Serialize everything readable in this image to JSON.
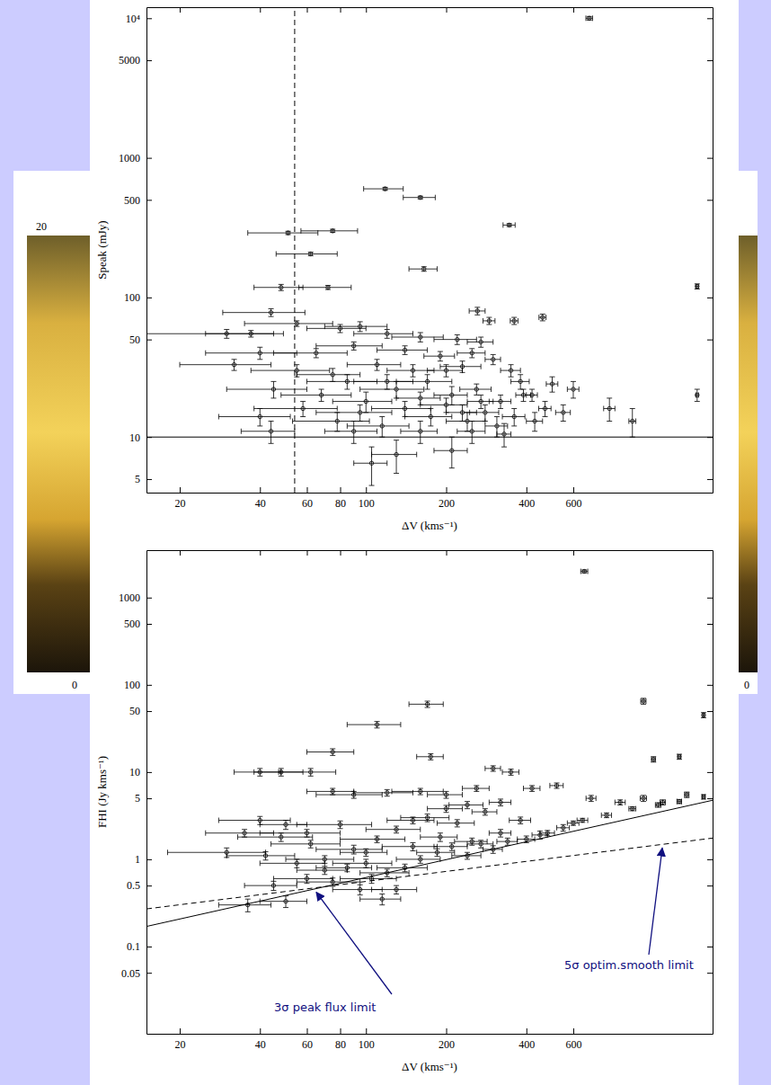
{
  "slide": {
    "background_labels": [
      "20",
      "0",
      "0"
    ]
  },
  "chart_data": [
    {
      "type": "scatter",
      "log": true,
      "marker": "circle",
      "color": "#000000",
      "x_label": "ΔV (kms⁻¹)",
      "y_label": "Speak (mJy)",
      "xlim": [
        15,
        2000
      ],
      "xticks": [
        20,
        40,
        60,
        80,
        100,
        200,
        400,
        600
      ],
      "ylim": [
        4,
        12000
      ],
      "yticks": [
        5,
        10,
        50,
        100,
        500,
        1000,
        5000,
        {
          "value": 10000,
          "label": "10⁴"
        }
      ],
      "hline": {
        "value": 10,
        "line_style": "solid"
      },
      "vline": {
        "value": 54,
        "line_style": "dashed"
      },
      "x": [
        689,
        118,
        160,
        51,
        75,
        62,
        345,
        165,
        48,
        72,
        1750,
        44,
        262,
        290,
        360,
        460,
        55,
        37,
        30,
        80,
        95,
        120,
        160,
        220,
        270,
        40,
        65,
        90,
        140,
        190,
        250,
        300,
        32,
        55,
        75,
        110,
        150,
        230,
        350,
        500,
        420,
        600,
        820,
        1000,
        1750,
        45,
        68,
        85,
        100,
        130,
        170,
        210,
        260,
        320,
        380,
        470,
        40,
        58,
        78,
        95,
        115,
        140,
        175,
        200,
        240,
        280,
        310,
        360,
        430,
        550,
        130,
        105,
        210,
        44,
        90,
        160,
        250,
        330,
        200,
        120,
        230,
        160,
        270,
        390
      ],
      "values": [
        10000,
        600,
        520,
        290,
        300,
        205,
        330,
        160,
        118,
        118,
        120,
        78,
        80,
        68,
        68,
        72,
        65,
        55,
        55,
        60,
        62,
        55,
        52,
        50,
        48,
        40,
        40,
        45,
        42,
        38,
        40,
        36,
        33,
        30,
        28,
        33,
        30,
        32,
        30,
        24,
        20,
        22,
        16,
        13,
        20,
        22,
        20,
        25,
        18,
        22,
        25,
        20,
        22,
        18,
        25,
        16,
        14,
        16,
        13,
        15,
        12,
        16,
        14,
        17,
        13,
        15,
        12,
        14,
        13,
        15,
        7.5,
        6.5,
        8,
        11,
        11,
        11,
        11,
        10.5,
        30,
        25,
        15,
        19,
        18,
        20
      ],
      "x_error": [
        20,
        20,
        22,
        15,
        18,
        16,
        18,
        20,
        10,
        16,
        20,
        15,
        18,
        15,
        12,
        14,
        20,
        12,
        15,
        20,
        25,
        30,
        35,
        40,
        30,
        15,
        20,
        25,
        30,
        25,
        30,
        20,
        12,
        18,
        20,
        25,
        30,
        40,
        30,
        25,
        20,
        30,
        40,
        30,
        20,
        15,
        20,
        25,
        25,
        35,
        40,
        30,
        35,
        30,
        30,
        25,
        12,
        20,
        25,
        30,
        30,
        35,
        35,
        40,
        40,
        35,
        30,
        35,
        30,
        35,
        25,
        15,
        30,
        10,
        20,
        25,
        30,
        20,
        30,
        30,
        30,
        30,
        30,
        25
      ],
      "y_error": [
        300,
        15,
        12,
        8,
        8,
        6,
        8,
        6,
        6,
        4,
        5,
        5,
        5,
        4,
        4,
        4,
        3,
        3,
        4,
        4,
        5,
        4,
        4,
        4,
        4,
        4,
        3,
        3,
        3,
        3,
        3,
        3,
        3,
        3,
        3,
        3,
        3,
        3,
        3,
        3,
        2,
        3,
        3,
        3,
        2,
        3,
        2,
        3,
        3,
        3,
        3,
        3,
        2,
        2,
        3,
        2,
        2,
        2,
        2,
        2,
        2,
        2,
        2,
        2,
        2,
        2,
        2,
        2,
        2,
        2,
        2,
        2,
        2,
        2,
        2,
        2,
        2,
        2,
        3,
        3,
        2,
        2,
        2,
        2
      ]
    },
    {
      "type": "scatter",
      "log": true,
      "marker": "circle",
      "color": "#000000",
      "x_label": "ΔV (kms⁻¹)",
      "y_label": "FHI (Jy kms⁻¹)",
      "xlim": [
        15,
        2000
      ],
      "xticks": [
        20,
        40,
        60,
        80,
        100,
        200,
        400,
        600
      ],
      "ylim": [
        0.01,
        3500
      ],
      "yticks": [
        0.05,
        0.1,
        0.5,
        1,
        5,
        10,
        50,
        100,
        500,
        1000
      ],
      "limits": [
        {
          "name": "3σ peak flux limit",
          "x": [
            15,
            2000
          ],
          "values": [
            0.17,
            4.75
          ],
          "line_style": "solid"
        },
        {
          "name": "5σ optim.smooth limit",
          "x": [
            15,
            2000
          ],
          "values": [
            0.27,
            1.75
          ],
          "line_style": "dashed"
        }
      ],
      "x": [
        660,
        1100,
        1850,
        170,
        110,
        75,
        175,
        1200,
        1500,
        48,
        62,
        40,
        40,
        50,
        60,
        75,
        90,
        120,
        160,
        200,
        260,
        300,
        350,
        420,
        520,
        700,
        900,
        1100,
        1300,
        1600,
        1850,
        30,
        35,
        42,
        48,
        55,
        62,
        70,
        80,
        90,
        100,
        110,
        130,
        150,
        170,
        190,
        220,
        250,
        280,
        320,
        380,
        450,
        550,
        650,
        800,
        1000,
        1250,
        1500,
        45,
        60,
        75,
        85,
        95,
        105,
        120,
        140,
        115,
        130,
        160,
        185,
        210,
        240,
        270,
        300,
        340,
        400,
        480,
        600,
        36,
        50,
        240,
        320,
        200,
        150,
        100,
        70
      ],
      "values": [
        2000,
        65,
        45,
        60,
        35,
        17,
        15,
        14,
        15,
        10,
        10,
        10,
        2.8,
        2.5,
        2,
        6,
        5.5,
        5.8,
        6,
        5.5,
        6.5,
        11,
        10,
        6.5,
        7,
        5,
        4.5,
        5,
        4.5,
        5.5,
        5.2,
        1.2,
        2,
        1.1,
        1.8,
        0.9,
        1.5,
        1,
        2.5,
        1.3,
        0.9,
        1.7,
        2.2,
        1.4,
        3,
        1.8,
        2.6,
        1.6,
        3.5,
        2,
        2.8,
        1.9,
        2.3,
        2.8,
        3.2,
        3.8,
        4.2,
        4.6,
        0.5,
        0.6,
        0.55,
        0.8,
        0.45,
        0.6,
        0.7,
        0.8,
        0.35,
        0.45,
        1,
        1.2,
        1.4,
        1.1,
        1.5,
        1.3,
        1.6,
        1.7,
        2,
        2.6,
        0.3,
        0.33,
        4.2,
        4.5,
        3.8,
        2.8,
        1.2,
        0.75
      ],
      "x_error": [
        20,
        25,
        15,
        25,
        25,
        15,
        20,
        20,
        20,
        10,
        15,
        8,
        12,
        10,
        20,
        15,
        25,
        30,
        35,
        30,
        30,
        20,
        25,
        30,
        30,
        30,
        40,
        30,
        30,
        30,
        20,
        12,
        10,
        12,
        15,
        15,
        18,
        20,
        25,
        25,
        25,
        30,
        30,
        35,
        35,
        30,
        35,
        35,
        30,
        30,
        35,
        30,
        30,
        30,
        35,
        30,
        30,
        30,
        10,
        15,
        20,
        20,
        20,
        25,
        25,
        30,
        20,
        25,
        30,
        30,
        30,
        30,
        30,
        25,
        30,
        30,
        30,
        30,
        8,
        10,
        35,
        30,
        30,
        30,
        20,
        15
      ],
      "y_error": [
        80,
        5,
        3,
        5,
        3,
        1.5,
        1.2,
        1,
        1,
        1,
        1,
        1,
        0.3,
        0.3,
        0.2,
        0.5,
        0.5,
        0.5,
        0.5,
        0.5,
        0.5,
        0.8,
        0.8,
        0.5,
        0.5,
        0.4,
        0.3,
        0.4,
        0.3,
        0.4,
        0.3,
        0.15,
        0.2,
        0.12,
        0.2,
        0.1,
        0.15,
        0.1,
        0.25,
        0.15,
        0.1,
        0.15,
        0.2,
        0.15,
        0.3,
        0.2,
        0.25,
        0.15,
        0.3,
        0.2,
        0.25,
        0.2,
        0.2,
        0.15,
        0.2,
        0.2,
        0.25,
        0.25,
        0.06,
        0.07,
        0.06,
        0.08,
        0.06,
        0.07,
        0.07,
        0.08,
        0.05,
        0.05,
        0.1,
        0.12,
        0.14,
        0.1,
        0.15,
        0.13,
        0.15,
        0.15,
        0.14,
        0.15,
        0.05,
        0.05,
        0.4,
        0.4,
        0.35,
        0.25,
        0.12,
        0.08
      ]
    }
  ]
}
